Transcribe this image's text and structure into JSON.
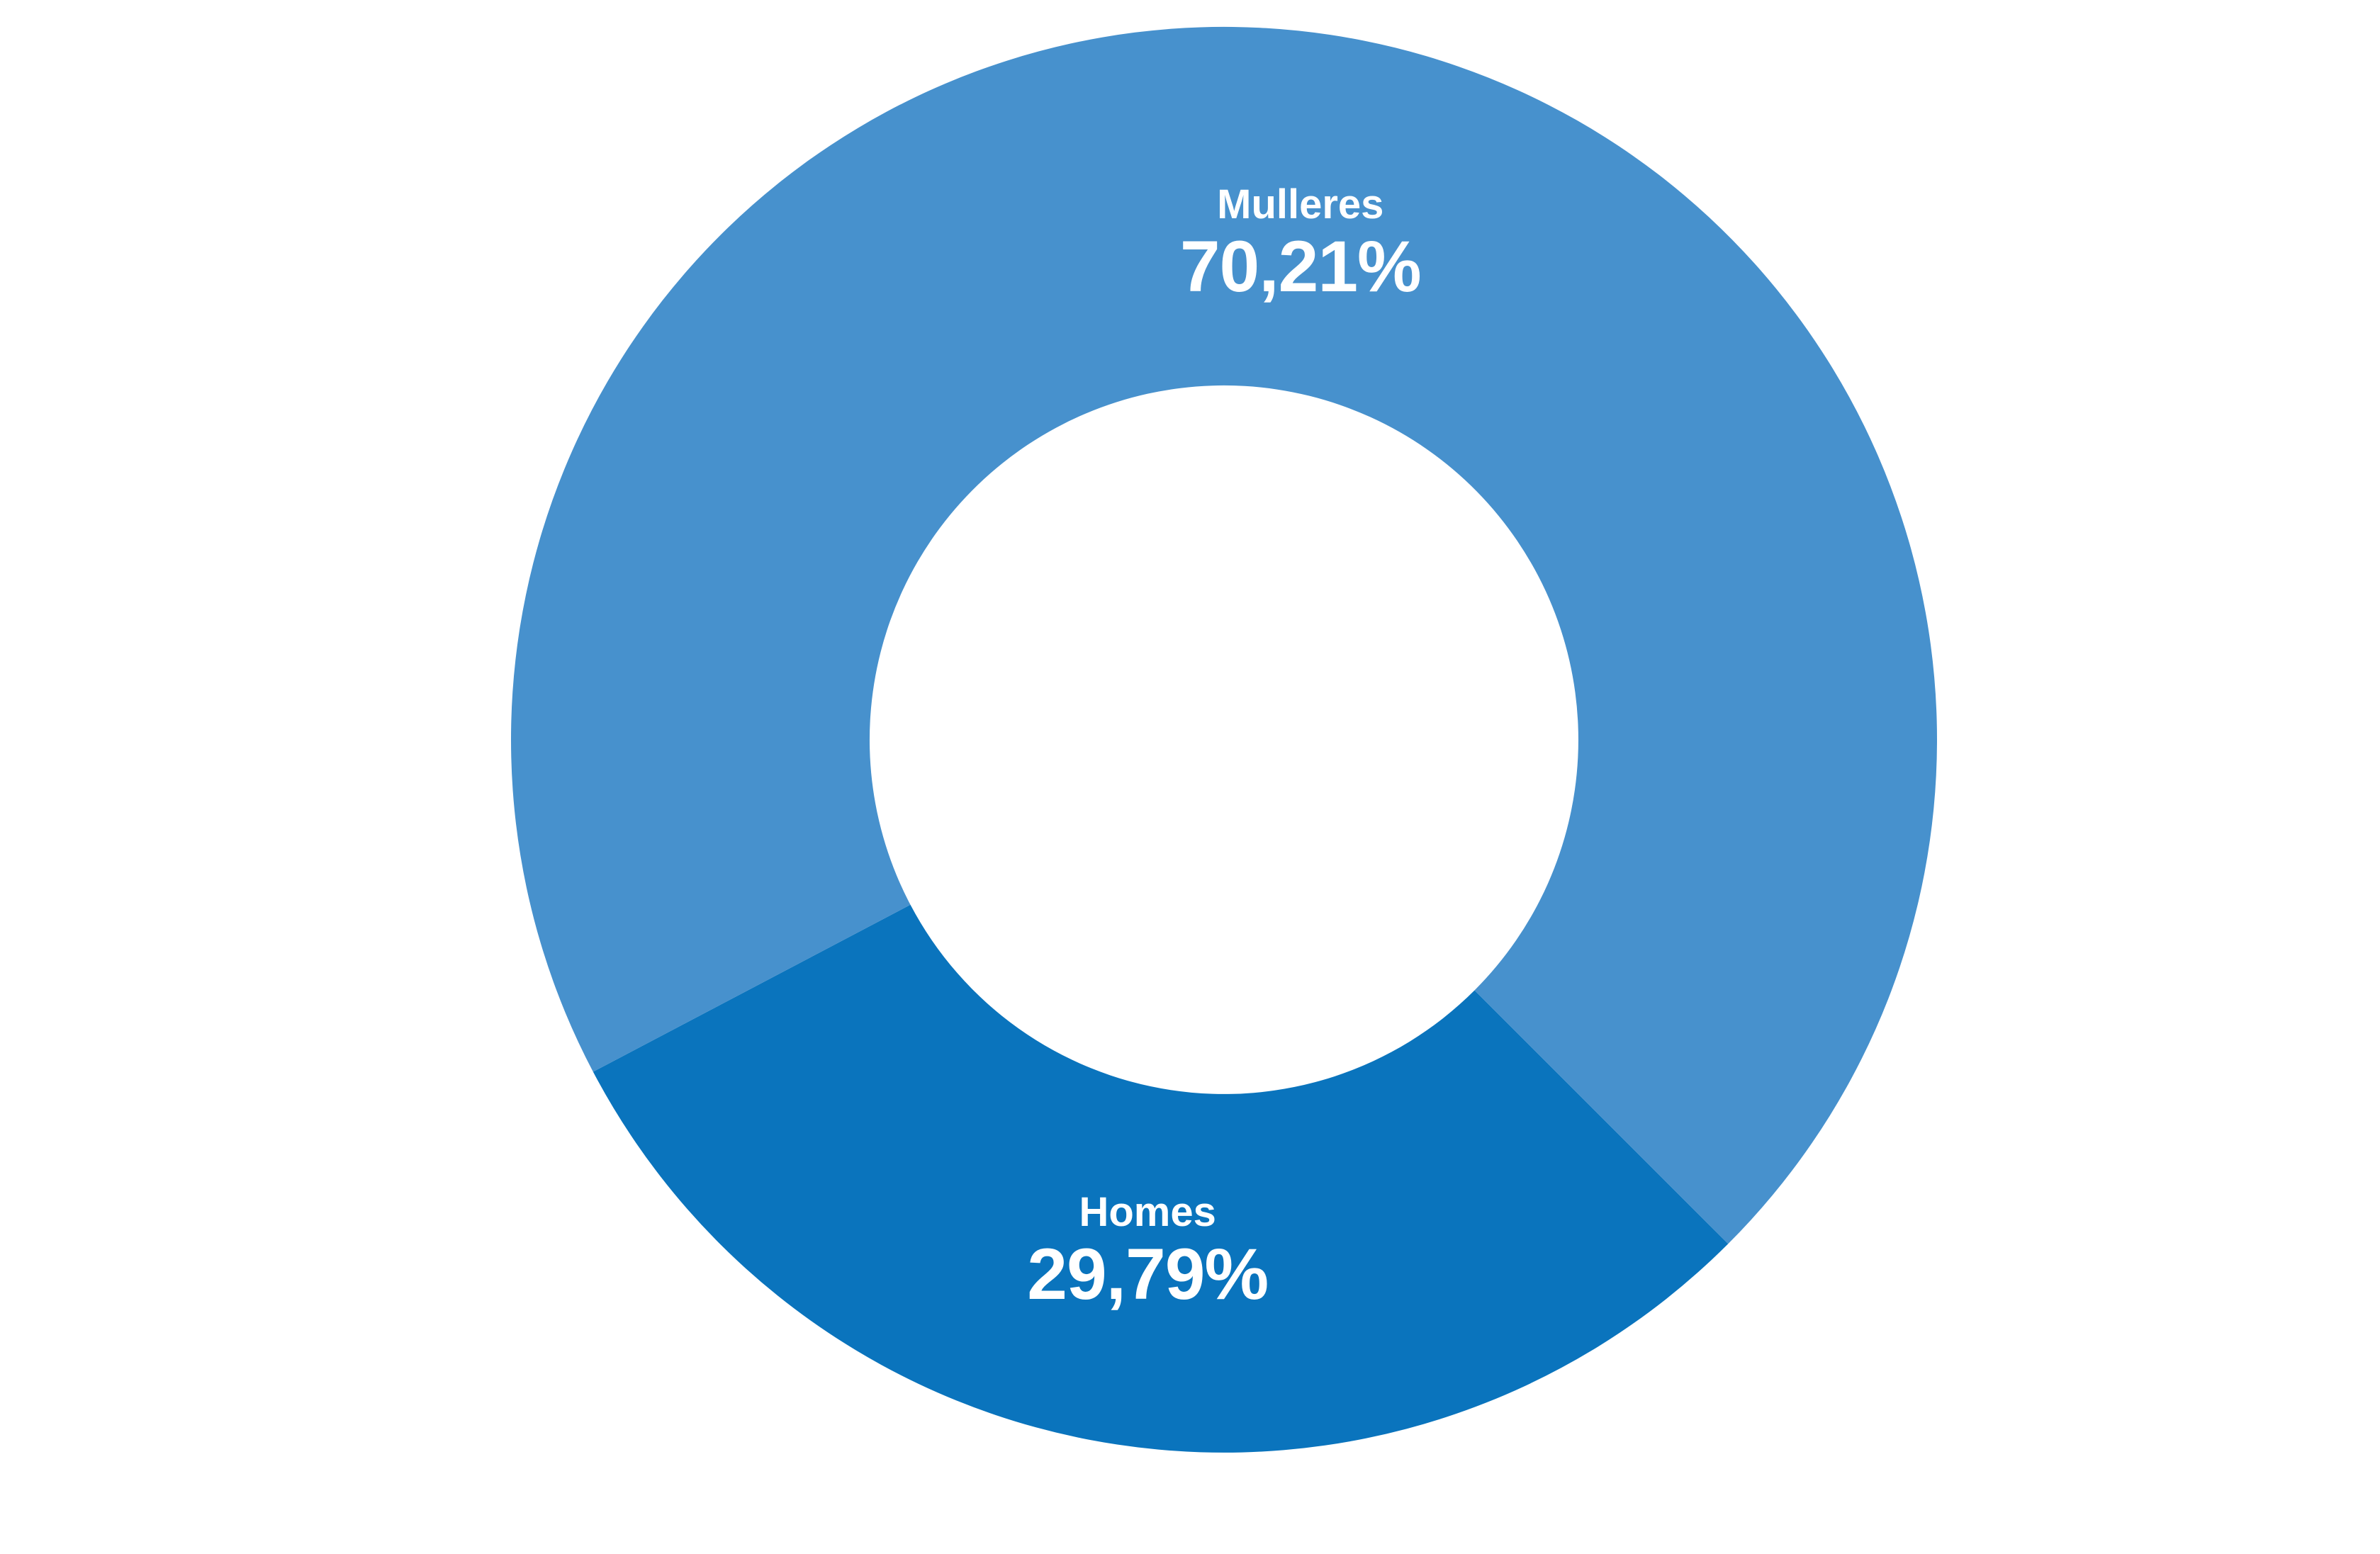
{
  "chart_data": {
    "type": "pie",
    "subtype": "donut",
    "title": "",
    "background_color": "#ffffff",
    "label_text_color": "#ffffff",
    "legend": "none",
    "data_labels": "inside",
    "start_angle_deg": 135,
    "clockwise": true,
    "inner_radius_ratio": 0.497,
    "slices": [
      {
        "name": "Homes",
        "value_pct": 29.79,
        "value_label": "29,79%",
        "color": "#0a74bd"
      },
      {
        "name": "Mulleres",
        "value_pct": 70.21,
        "value_label": "70,21%",
        "color": "#4791cd"
      }
    ]
  }
}
